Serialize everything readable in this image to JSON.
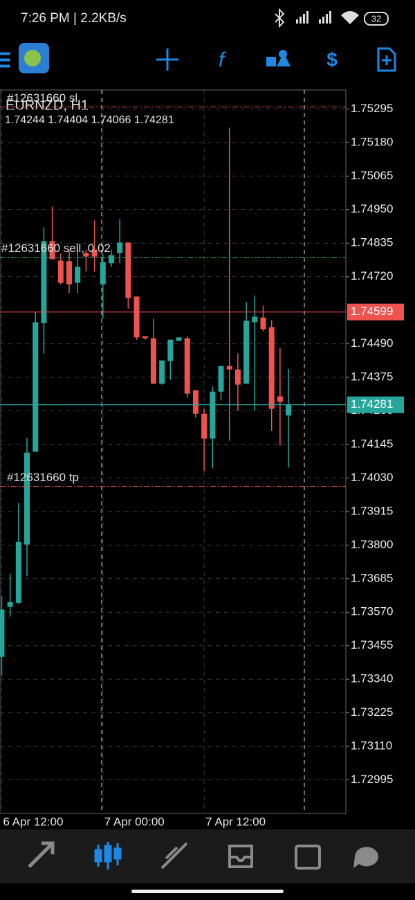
{
  "status_bar": {
    "time": "7:26 PM | 2.2KB/s",
    "battery": "32"
  },
  "chart_data": {
    "type": "candlestick",
    "title": "EURNZD, H1",
    "up_color": "#26a69a",
    "down_color": "#ef5350",
    "candles": [
      {
        "open": 1.73417,
        "high": 1.73626,
        "low": 1.73353,
        "close": 1.73579
      },
      {
        "open": 1.73588,
        "high": 1.73702,
        "low": 1.73555,
        "close": 1.73605
      },
      {
        "open": 1.73602,
        "high": 1.73944,
        "low": 1.73598,
        "close": 1.73811
      },
      {
        "open": 1.73802,
        "high": 1.74167,
        "low": 1.73693,
        "close": 1.74117
      },
      {
        "open": 1.7412,
        "high": 1.74599,
        "low": 1.7412,
        "close": 1.74564
      },
      {
        "open": 1.74561,
        "high": 1.74889,
        "low": 1.74457,
        "close": 1.74842
      },
      {
        "open": 1.74842,
        "high": 1.7496,
        "low": 1.7478,
        "close": 1.7478
      },
      {
        "open": 1.74775,
        "high": 1.74799,
        "low": 1.74694,
        "close": 1.74699
      },
      {
        "open": 1.74773,
        "high": 1.74813,
        "low": 1.74664,
        "close": 1.74694
      },
      {
        "open": 1.74699,
        "high": 1.74813,
        "low": 1.74664,
        "close": 1.74754
      },
      {
        "open": 1.74801,
        "high": 1.74813,
        "low": 1.74737,
        "close": 1.74789
      },
      {
        "open": 1.74813,
        "high": 1.74913,
        "low": 1.74737,
        "close": 1.74789
      },
      {
        "open": 1.74694,
        "high": 1.74799,
        "low": 1.74576,
        "close": 1.7477
      },
      {
        "open": 1.74766,
        "high": 1.74813,
        "low": 1.74754,
        "close": 1.74794
      },
      {
        "open": 1.74801,
        "high": 1.74918,
        "low": 1.74766,
        "close": 1.74837
      },
      {
        "open": 1.74837,
        "high": 1.74837,
        "low": 1.74611,
        "close": 1.74647
      },
      {
        "open": 1.74652,
        "high": 1.74652,
        "low": 1.74504,
        "close": 1.74512
      },
      {
        "open": 1.74516,
        "high": 1.74516,
        "low": 1.74504,
        "close": 1.74509
      },
      {
        "open": 1.74509,
        "high": 1.74576,
        "low": 1.74353,
        "close": 1.74353
      },
      {
        "open": 1.74353,
        "high": 1.74433,
        "low": 1.7435,
        "close": 1.74433
      },
      {
        "open": 1.74431,
        "high": 1.74504,
        "low": 1.74367,
        "close": 1.74504
      },
      {
        "open": 1.745,
        "high": 1.74512,
        "low": 1.745,
        "close": 1.74512
      },
      {
        "open": 1.74509,
        "high": 1.74516,
        "low": 1.74305,
        "close": 1.74319
      },
      {
        "open": 1.74331,
        "high": 1.74331,
        "low": 1.74236,
        "close": 1.7425
      },
      {
        "open": 1.7425,
        "high": 1.74267,
        "low": 1.74053,
        "close": 1.74165
      },
      {
        "open": 1.74165,
        "high": 1.74343,
        "low": 1.74063,
        "close": 1.74326
      },
      {
        "open": 1.74326,
        "high": 1.74414,
        "low": 1.74296,
        "close": 1.74414
      },
      {
        "open": 1.74414,
        "high": 1.75231,
        "low": 1.74158,
        "close": 1.74402
      },
      {
        "open": 1.74402,
        "high": 1.74457,
        "low": 1.7426,
        "close": 1.7435
      },
      {
        "open": 1.74353,
        "high": 1.74633,
        "low": 1.74353,
        "close": 1.74569
      },
      {
        "open": 1.74564,
        "high": 1.74656,
        "low": 1.7426,
        "close": 1.74583
      },
      {
        "open": 1.7458,
        "high": 1.74621,
        "low": 1.74533,
        "close": 1.7454
      },
      {
        "open": 1.74547,
        "high": 1.74571,
        "low": 1.74191,
        "close": 1.74267
      },
      {
        "open": 1.7431,
        "high": 1.74476,
        "low": 1.74141,
        "close": 1.74291
      },
      {
        "open": 1.74244,
        "high": 1.74404,
        "low": 1.74066,
        "close": 1.74281
      }
    ],
    "xlim": [
      -0.2,
      40.8
    ],
    "xticks": [
      {
        "value": 0,
        "label": "6 Apr 12:00"
      },
      {
        "value": 12,
        "label": "7 Apr 00:00"
      },
      {
        "value": 24,
        "label": "7 Apr 12:00"
      }
    ],
    "ylim": [
      1.7288,
      1.7536
    ],
    "yticks": [
      1.75295,
      {
        "value": 1.7518,
        "label": "1.75180"
      },
      1.75065,
      {
        "value": 1.7495,
        "label": "1.74950"
      },
      1.74835,
      {
        "value": 1.7472,
        "label": "1.74720"
      },
      {
        "value": 1.7449,
        "label": "1.74490"
      },
      1.74375,
      {
        "value": 1.7426,
        "label": "1.74260"
      },
      1.74145,
      {
        "value": 1.7403,
        "label": "1.74030"
      },
      1.73915,
      {
        "value": 1.738,
        "label": "1.73800"
      },
      1.73685,
      {
        "value": 1.7357,
        "label": "1.73570"
      },
      1.73455,
      {
        "value": 1.7334,
        "label": "1.73340"
      },
      1.73225,
      {
        "value": 1.7311,
        "label": "1.73110"
      },
      1.72995
    ],
    "grid": true,
    "levels": [
      {
        "label": "#12631660 sl",
        "value": 1.75302,
        "color": "#ef5350"
      },
      {
        "label": "#12631660 sell, 0.02",
        "value": 1.74787,
        "color": "#26a69a"
      },
      {
        "label": "#12631660 tp",
        "value": 1.74001,
        "color": "#ef5350"
      }
    ],
    "price_lines": [
      {
        "value": 1.74599,
        "color": "#ef5350"
      },
      {
        "value": 1.74281,
        "color": "#26a69a"
      }
    ]
  }
}
